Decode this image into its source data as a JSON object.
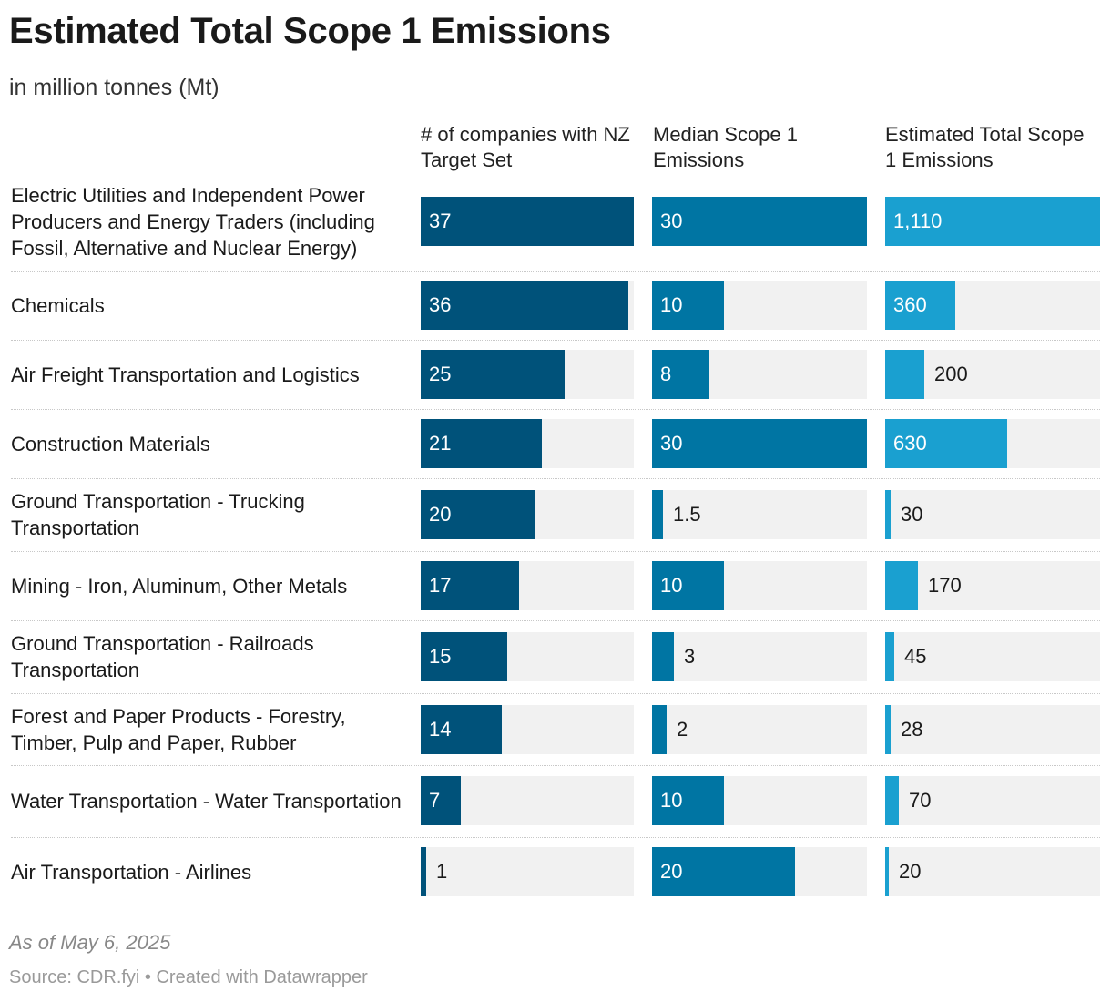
{
  "title": "Estimated Total Scope 1 Emissions",
  "subtitle": "in million tonnes (Mt)",
  "note": "As of May 6, 2025",
  "source": "Source: CDR.fyi • Created with Datawrapper",
  "colors": {
    "col1": "#00527a",
    "col2": "#0075a3",
    "col3": "#1aa0d0",
    "track": "#f1f1f1"
  },
  "chart_data": {
    "type": "bar",
    "title": "Estimated Total Scope 1 Emissions",
    "subtitle": "in million tonnes (Mt)",
    "columns": [
      {
        "key": "companies",
        "label": "# of companies with NZ Target Set",
        "max": 37
      },
      {
        "key": "median",
        "label": "Median Scope 1 Emissions",
        "max": 30
      },
      {
        "key": "total",
        "label": "Estimated Total Scope 1 Emissions",
        "max": 1110
      }
    ],
    "categories": [
      "Electric Utilities and Independent Power Producers and Energy Traders (including Fossil, Alternative and Nuclear Energy)",
      "Chemicals",
      "Air Freight Transportation and Logistics",
      "Construction Materials",
      "Ground Transportation - Trucking Transportation",
      "Mining - Iron, Aluminum, Other Metals",
      "Ground Transportation - Railroads Transportation",
      "Forest and Paper Products - Forestry, Timber, Pulp and Paper, Rubber",
      "Water Transportation - Water Transportation",
      "Air Transportation - Airlines"
    ],
    "series": [
      {
        "name": "# of companies with NZ Target Set",
        "values": [
          37,
          36,
          25,
          21,
          20,
          17,
          15,
          14,
          7,
          1
        ],
        "labels": [
          "37",
          "36",
          "25",
          "21",
          "20",
          "17",
          "15",
          "14",
          "7",
          "1"
        ]
      },
      {
        "name": "Median Scope 1 Emissions",
        "values": [
          30,
          10,
          8,
          30,
          1.5,
          10,
          3,
          2,
          10,
          20
        ],
        "labels": [
          "30",
          "10",
          "8",
          "30",
          "1.5",
          "10",
          "3",
          "2",
          "10",
          "20"
        ]
      },
      {
        "name": "Estimated Total Scope 1 Emissions",
        "values": [
          1110,
          360,
          200,
          630,
          30,
          170,
          45,
          28,
          70,
          20
        ],
        "labels": [
          "1,110",
          "360",
          "200",
          "630",
          "30",
          "170",
          "45",
          "28",
          "70",
          "20"
        ]
      }
    ]
  }
}
